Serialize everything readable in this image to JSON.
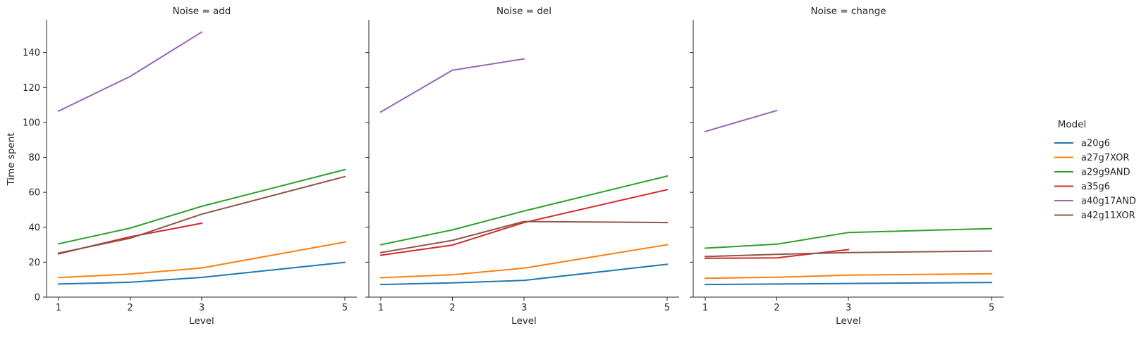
{
  "colors": {
    "a20g6": "#1f77b4",
    "a27g7XOR": "#ff7f0e",
    "a29g9AND": "#2ca02c",
    "a35g6": "#d62728",
    "a40g17AND": "#9467bd",
    "a42g11XOR": "#8c564b"
  },
  "chart_data": {
    "type": "line",
    "xlabel": "Level",
    "ylabel": "Time spent",
    "x_ticks": [
      1,
      2,
      3,
      5
    ],
    "y_ticks": [
      0,
      20,
      40,
      60,
      80,
      100,
      120,
      140
    ],
    "ylim": [
      0,
      158
    ],
    "grid": false,
    "legend": {
      "title": "Model",
      "placement": "right",
      "entries": [
        "a20g6",
        "a27g7XOR",
        "a29g9AND",
        "a35g6",
        "a40g17AND",
        "a42g11XOR"
      ]
    },
    "panels": [
      {
        "title": "Noise = add",
        "series": [
          {
            "name": "a20g6",
            "x": [
              1,
              2,
              3,
              5
            ],
            "y": [
              7.5,
              8.5,
              11.3,
              19.9
            ]
          },
          {
            "name": "a27g7XOR",
            "x": [
              1,
              2,
              3,
              5
            ],
            "y": [
              11.2,
              13.2,
              16.7,
              31.5
            ]
          },
          {
            "name": "a29g9AND",
            "x": [
              1,
              2,
              3,
              5
            ],
            "y": [
              30.5,
              39.5,
              52.0,
              73.0
            ]
          },
          {
            "name": "a35g6",
            "x": [
              1,
              2,
              3
            ],
            "y": [
              24.8,
              34.5,
              42.3
            ]
          },
          {
            "name": "a40g17AND",
            "x": [
              1,
              2,
              3
            ],
            "y": [
              106.5,
              126.3,
              151.7
            ]
          },
          {
            "name": "a42g11XOR",
            "x": [
              1,
              2,
              3,
              5
            ],
            "y": [
              25.2,
              33.7,
              47.5,
              69.0
            ]
          }
        ]
      },
      {
        "title": "Noise = del",
        "series": [
          {
            "name": "a20g6",
            "x": [
              1,
              2,
              3,
              5
            ],
            "y": [
              7.2,
              8.2,
              9.6,
              18.8
            ]
          },
          {
            "name": "a27g7XOR",
            "x": [
              1,
              2,
              3,
              5
            ],
            "y": [
              11.1,
              12.8,
              16.6,
              30.0
            ]
          },
          {
            "name": "a29g9AND",
            "x": [
              1,
              2,
              3,
              5
            ],
            "y": [
              30.0,
              38.5,
              49.3,
              69.3
            ]
          },
          {
            "name": "a35g6",
            "x": [
              1,
              2,
              3,
              5
            ],
            "y": [
              24.0,
              29.8,
              42.7,
              61.5
            ]
          },
          {
            "name": "a40g17AND",
            "x": [
              1,
              2,
              3
            ],
            "y": [
              106.0,
              129.9,
              136.4
            ]
          },
          {
            "name": "a42g11XOR",
            "x": [
              1,
              2,
              3,
              5
            ],
            "y": [
              25.5,
              32.5,
              43.3,
              42.7
            ]
          }
        ]
      },
      {
        "title": "Noise = change",
        "series": [
          {
            "name": "a20g6",
            "x": [
              1,
              2,
              3,
              5
            ],
            "y": [
              7.2,
              7.5,
              7.8,
              8.4
            ]
          },
          {
            "name": "a27g7XOR",
            "x": [
              1,
              2,
              3,
              5
            ],
            "y": [
              10.8,
              11.4,
              12.6,
              13.4
            ]
          },
          {
            "name": "a29g9AND",
            "x": [
              1,
              2,
              3,
              5
            ],
            "y": [
              28.0,
              30.3,
              37.0,
              39.2
            ]
          },
          {
            "name": "a35g6",
            "x": [
              1,
              2,
              3
            ],
            "y": [
              22.2,
              22.5,
              27.2
            ]
          },
          {
            "name": "a40g17AND",
            "x": [
              1,
              2
            ],
            "y": [
              94.8,
              106.8
            ]
          },
          {
            "name": "a42g11XOR",
            "x": [
              1,
              2,
              3,
              5
            ],
            "y": [
              23.2,
              24.5,
              25.5,
              26.4
            ]
          }
        ]
      }
    ]
  }
}
